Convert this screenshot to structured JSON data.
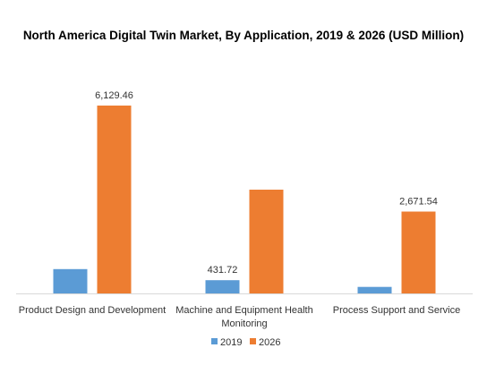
{
  "chart_data": {
    "type": "bar",
    "title": "North America Digital Twin Market, By Application, 2019 & 2026 (USD Million)",
    "xlabel": "",
    "ylabel": "",
    "categories": [
      "Product Design and Development",
      "Machine and Equipment Health Monitoring",
      "Process Support and Service"
    ],
    "category_label_lines": [
      [
        "Product Design and Development"
      ],
      [
        "Machine and Equipment Health",
        "Monitoring"
      ],
      [
        "Process Support and Service"
      ]
    ],
    "series": [
      {
        "name": "2019",
        "color": "#5b9bd5",
        "values": [
          795,
          431.72,
          214
        ],
        "data_labels": [
          "",
          "431.72",
          ""
        ]
      },
      {
        "name": "2026",
        "color": "#ed7d31",
        "values": [
          6129.46,
          3385,
          2671.54
        ],
        "data_labels": [
          "6,129.46",
          "",
          "2,671.54"
        ]
      }
    ],
    "ylim": [
      0,
      7000
    ],
    "grid": false,
    "y_axis_visible": false,
    "legend_position": "bottom"
  }
}
